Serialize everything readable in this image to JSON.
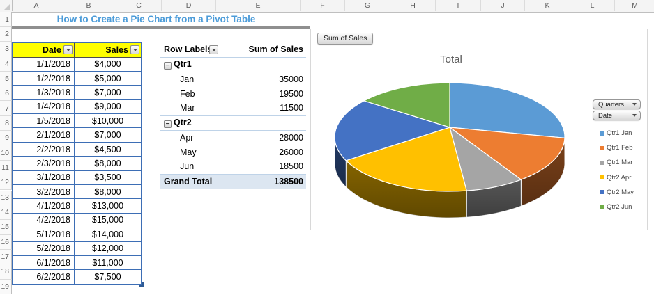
{
  "sheet": {
    "title": "How to Create a Pie Chart from a Pivot Table",
    "column_letters": [
      "A",
      "B",
      "C",
      "D",
      "E",
      "F",
      "G",
      "H",
      "I",
      "J",
      "K",
      "L",
      "M"
    ],
    "row_numbers": [
      "1",
      "2",
      "3",
      "4",
      "5",
      "6",
      "7",
      "8",
      "9",
      "10",
      "11",
      "12",
      "13",
      "14",
      "15",
      "16",
      "17",
      "18",
      "19"
    ]
  },
  "data_table": {
    "headers": [
      "Date",
      "Sales"
    ],
    "rows": [
      [
        "1/1/2018",
        "$4,000"
      ],
      [
        "1/2/2018",
        "$5,000"
      ],
      [
        "1/3/2018",
        "$7,000"
      ],
      [
        "1/4/2018",
        "$9,000"
      ],
      [
        "1/5/2018",
        "$10,000"
      ],
      [
        "2/1/2018",
        "$7,000"
      ],
      [
        "2/2/2018",
        "$4,500"
      ],
      [
        "2/3/2018",
        "$8,000"
      ],
      [
        "3/1/2018",
        "$3,500"
      ],
      [
        "3/2/2018",
        "$8,000"
      ],
      [
        "4/1/2018",
        "$13,000"
      ],
      [
        "4/2/2018",
        "$15,000"
      ],
      [
        "5/1/2018",
        "$14,000"
      ],
      [
        "5/2/2018",
        "$12,000"
      ],
      [
        "6/1/2018",
        "$11,000"
      ],
      [
        "6/2/2018",
        "$7,500"
      ]
    ]
  },
  "pivot_table": {
    "headers": {
      "row_labels": "Row Labels",
      "values": "Sum of Sales"
    },
    "rows": [
      {
        "type": "group",
        "label": "Qtr1",
        "value": ""
      },
      {
        "type": "item",
        "label": "Jan",
        "value": "35000"
      },
      {
        "type": "item",
        "label": "Feb",
        "value": "19500"
      },
      {
        "type": "item",
        "label": "Mar",
        "value": "11500"
      },
      {
        "type": "group",
        "label": "Qtr2",
        "value": ""
      },
      {
        "type": "item",
        "label": "Apr",
        "value": "28000"
      },
      {
        "type": "item",
        "label": "May",
        "value": "26000"
      },
      {
        "type": "item",
        "label": "Jun",
        "value": "18500"
      },
      {
        "type": "total",
        "label": "Grand Total",
        "value": "138500"
      }
    ]
  },
  "chart": {
    "field_button": "Sum of Sales",
    "title": "Total",
    "filter_buttons": [
      "Quarters",
      "Date"
    ],
    "legend": [
      {
        "label": "Qtr1 Jan",
        "color": "#5B9BD5"
      },
      {
        "label": "Qtr1 Feb",
        "color": "#ED7D31"
      },
      {
        "label": "Qtr1 Mar",
        "color": "#A5A5A5"
      },
      {
        "label": "Qtr2 Apr",
        "color": "#FFC000"
      },
      {
        "label": "Qtr2 May",
        "color": "#4472C4"
      },
      {
        "label": "Qtr2 Jun",
        "color": "#70AD47"
      }
    ]
  },
  "chart_data": {
    "type": "pie",
    "style": "3d",
    "title": "Total",
    "categories": [
      "Qtr1 Jan",
      "Qtr1 Feb",
      "Qtr1 Mar",
      "Qtr2 Apr",
      "Qtr2 May",
      "Qtr2 Jun"
    ],
    "values": [
      35000,
      19500,
      11500,
      28000,
      26000,
      18500
    ],
    "total": 138500,
    "colors": [
      "#5B9BD5",
      "#ED7D31",
      "#A5A5A5",
      "#FFC000",
      "#4472C4",
      "#70AD47"
    ],
    "legend_position": "right",
    "start_angle_deg": 0,
    "direction": "clockwise"
  },
  "colors": {
    "title_text": "#4C9CD9",
    "table_header_bg": "#FFFF00",
    "table_border": "#3D6EB5",
    "pivot_border": "#BFD3E8",
    "pivot_total_bg": "#DCE6F1",
    "chart_title_text": "#595959"
  }
}
